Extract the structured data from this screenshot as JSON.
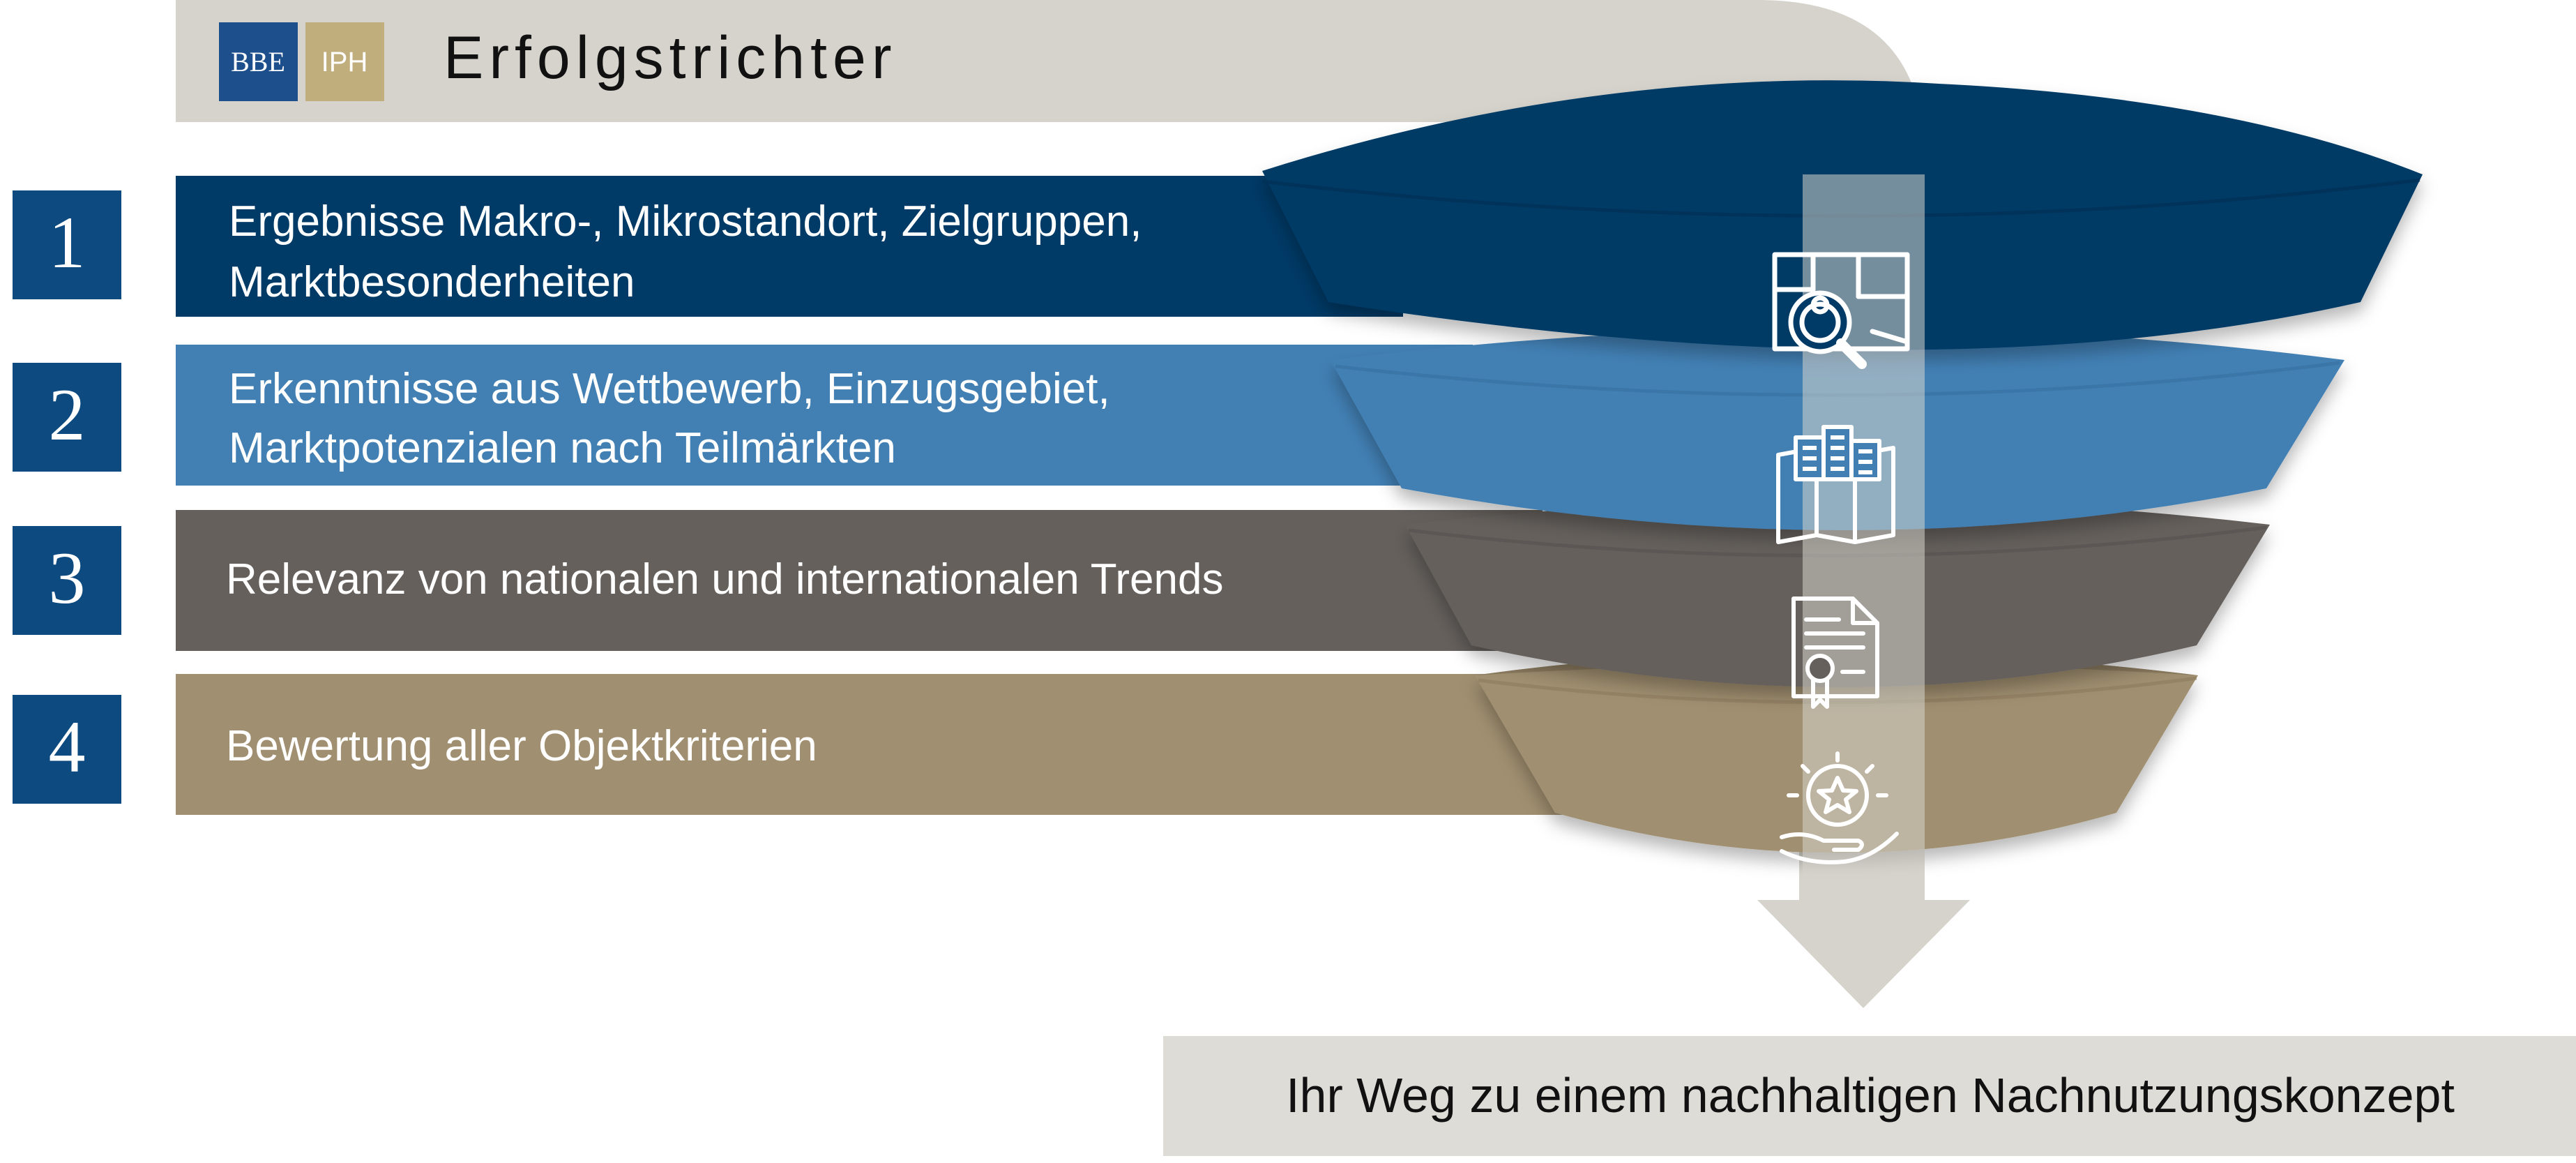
{
  "header": {
    "logo_left": "BBE",
    "logo_right": "IPH",
    "title": "Erfolgstrichter"
  },
  "colors": {
    "header_band": "#d6d3cc",
    "arrow": "#d6d3cc",
    "badge": "#0c4a80",
    "logo_left_bg": "#1d4f8c",
    "logo_right_bg": "#c1ae7d",
    "step1": "#003a66",
    "step2": "#4280b4",
    "step3": "#65605c",
    "step4": "#a08f70",
    "footer_bg": "#dedcd7"
  },
  "steps": [
    {
      "number": "1",
      "line1": "Ergebnisse Makro-, Mikrostandort, Zielgruppen,",
      "line2": "Marktbesonderheiten",
      "icon": "map-search-icon"
    },
    {
      "number": "2",
      "line1": "Erkenntnisse aus Wettbewerb, Einzugsgebiet,",
      "line2": "Marktpotenzialen nach Teilmärkten",
      "icon": "city-map-icon"
    },
    {
      "number": "3",
      "line1": "Relevanz von nationalen und internationalen Trends",
      "line2": "",
      "icon": "certificate-document-icon"
    },
    {
      "number": "4",
      "line1": "Bewertung aller Objektkriterien",
      "line2": "",
      "icon": "hand-star-icon"
    }
  ],
  "footer": {
    "text": "Ihr Weg zu einem nachhaltigen Nachnutzungskonzept"
  }
}
